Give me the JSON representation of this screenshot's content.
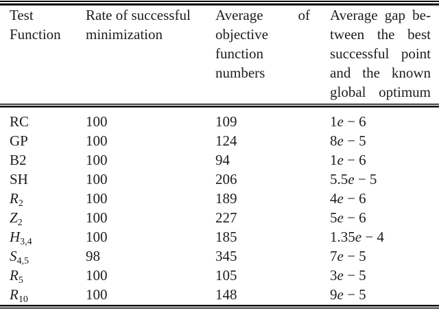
{
  "colors": {
    "text": "#1c1c1c",
    "rule": "#000000",
    "background": "#ffffff"
  },
  "table": {
    "headers": {
      "col1_lines": [
        "Test",
        "Function"
      ],
      "col2_lines": [
        "Rate of successful",
        "minimization"
      ],
      "col3_lines": [
        [
          "Average",
          "of"
        ],
        [
          "objective"
        ],
        [
          "function"
        ],
        [
          "numbers"
        ]
      ],
      "col4_lines": [
        [
          "Average",
          "gap",
          "be-"
        ],
        [
          "tween",
          "the",
          "best"
        ],
        [
          "successful",
          "point"
        ],
        [
          "and",
          "the",
          "known"
        ],
        [
          "global",
          "optimum"
        ]
      ]
    },
    "rows": [
      {
        "fn": "RC",
        "fn_sub": "",
        "fn_italic": false,
        "rate": "100",
        "avg": "109",
        "gap": "1e − 6"
      },
      {
        "fn": "GP",
        "fn_sub": "",
        "fn_italic": false,
        "rate": "100",
        "avg": "124",
        "gap": "8e − 5"
      },
      {
        "fn": "B2",
        "fn_sub": "",
        "fn_italic": false,
        "rate": "100",
        "avg": "94",
        "gap": "1e − 6"
      },
      {
        "fn": "SH",
        "fn_sub": "",
        "fn_italic": false,
        "rate": "100",
        "avg": "206",
        "gap": "5.5e − 5"
      },
      {
        "fn": "R",
        "fn_sub": "2",
        "fn_italic": true,
        "rate": "100",
        "avg": "189",
        "gap": "4e − 6"
      },
      {
        "fn": "Z",
        "fn_sub": "2",
        "fn_italic": true,
        "rate": "100",
        "avg": "227",
        "gap": "5e − 6"
      },
      {
        "fn": "H",
        "fn_sub": "3,4",
        "fn_italic": true,
        "rate": "100",
        "avg": "185",
        "gap": "1.35e − 4"
      },
      {
        "fn": "S",
        "fn_sub": "4,5",
        "fn_italic": true,
        "rate": "98",
        "avg": "345",
        "gap": "7e − 5"
      },
      {
        "fn": "R",
        "fn_sub": "5",
        "fn_italic": true,
        "rate": "100",
        "avg": "105",
        "gap": "3e − 5"
      },
      {
        "fn": "R",
        "fn_sub": "10",
        "fn_italic": true,
        "rate": "100",
        "avg": "148",
        "gap": "9e − 5"
      }
    ]
  }
}
